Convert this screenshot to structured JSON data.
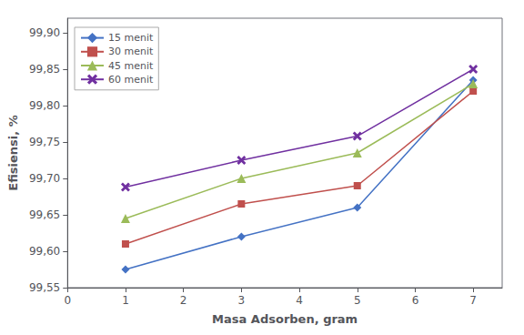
{
  "chart_data": {
    "type": "line",
    "x": [
      1,
      3,
      5,
      7
    ],
    "series": [
      {
        "name": "15 menit",
        "color": "#4472C4",
        "marker": "diamond",
        "values": [
          99.575,
          99.62,
          99.66,
          99.835
        ]
      },
      {
        "name": "30 menit",
        "color": "#C0504D",
        "marker": "square",
        "values": [
          99.61,
          99.665,
          99.69,
          99.82
        ]
      },
      {
        "name": "45 menit",
        "color": "#9BBB59",
        "marker": "triangle",
        "values": [
          99.645,
          99.7,
          99.735,
          99.83
        ]
      },
      {
        "name": "60 menit",
        "color": "#7030A0",
        "marker": "x",
        "values": [
          99.688,
          99.725,
          99.758,
          99.85
        ]
      }
    ],
    "xlabel": "Masa Adsorben, gram",
    "ylabel": "Efisiensi, %",
    "xlim": [
      0,
      7.5
    ],
    "ylim": [
      99.55,
      99.92
    ],
    "xticks": [
      0,
      1,
      2,
      3,
      4,
      5,
      6,
      7
    ],
    "yticks": [
      {
        "value": 99.55,
        "label": "99,55"
      },
      {
        "value": 99.6,
        "label": "99,60"
      },
      {
        "value": 99.65,
        "label": "99,65"
      },
      {
        "value": 99.7,
        "label": "99,70"
      },
      {
        "value": 99.75,
        "label": "99,75"
      },
      {
        "value": 99.8,
        "label": "99,80"
      },
      {
        "value": 99.85,
        "label": "99,85"
      },
      {
        "value": 99.9,
        "label": "99,90"
      }
    ],
    "grid": false,
    "legend": "upper left"
  }
}
